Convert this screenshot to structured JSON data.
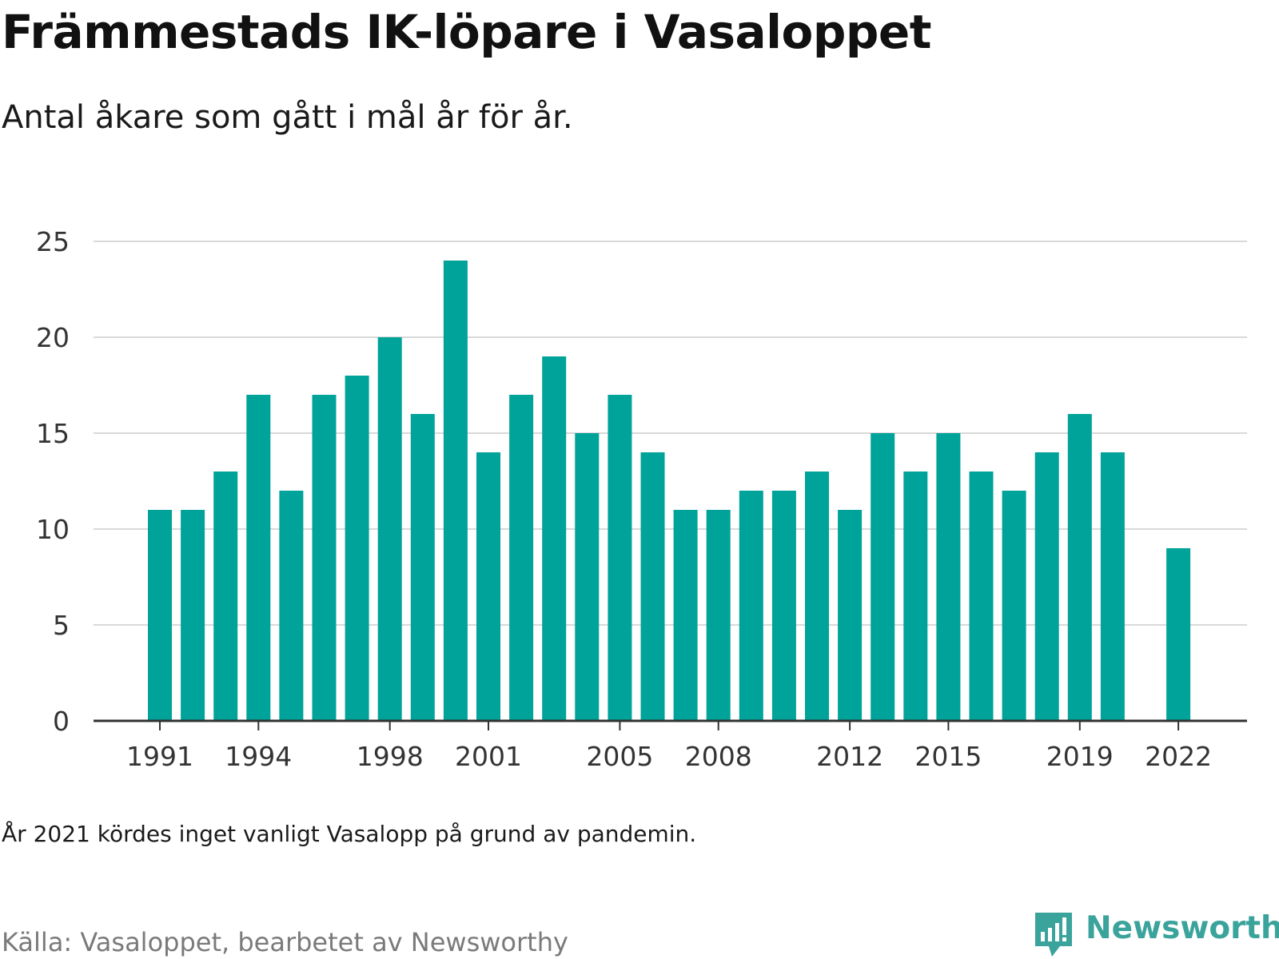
{
  "title": "Främmestads IK-löpare i Vasaloppet",
  "subtitle": "Antal åkare som gått i mål år för år.",
  "note": "År 2021 kördes inget vanligt Vasalopp på grund av pandemin.",
  "source": "Källa: Vasaloppet, bearbetet av Newsworthy",
  "brand": {
    "name": "Newsworthy",
    "icon": "newsworthy-logo-icon",
    "color": "#3aa39b"
  },
  "chart_data": {
    "type": "bar",
    "categories": [
      "1991",
      "1992",
      "1993",
      "1994",
      "1995",
      "1996",
      "1997",
      "1998",
      "1999",
      "2000",
      "2001",
      "2002",
      "2003",
      "2004",
      "2005",
      "2006",
      "2007",
      "2008",
      "2009",
      "2010",
      "2011",
      "2012",
      "2013",
      "2014",
      "2015",
      "2016",
      "2017",
      "2018",
      "2019",
      "2020",
      "2021",
      "2022"
    ],
    "values": [
      11,
      11,
      13,
      17,
      12,
      17,
      18,
      20,
      16,
      24,
      14,
      17,
      19,
      15,
      17,
      14,
      11,
      11,
      12,
      12,
      13,
      11,
      15,
      13,
      15,
      13,
      12,
      14,
      16,
      14,
      null,
      9
    ],
    "x_tick_labels": [
      "1991",
      "1994",
      "1998",
      "2001",
      "2005",
      "2008",
      "2012",
      "2015",
      "2019",
      "2022"
    ],
    "y_ticks": [
      0,
      5,
      10,
      15,
      20,
      25
    ],
    "ylim": [
      0,
      25
    ],
    "xlabel": "",
    "ylabel": "",
    "grid": true,
    "bar_color": "#00a39a",
    "axis_color": "#333333",
    "grid_color": "#d9d9d9"
  }
}
